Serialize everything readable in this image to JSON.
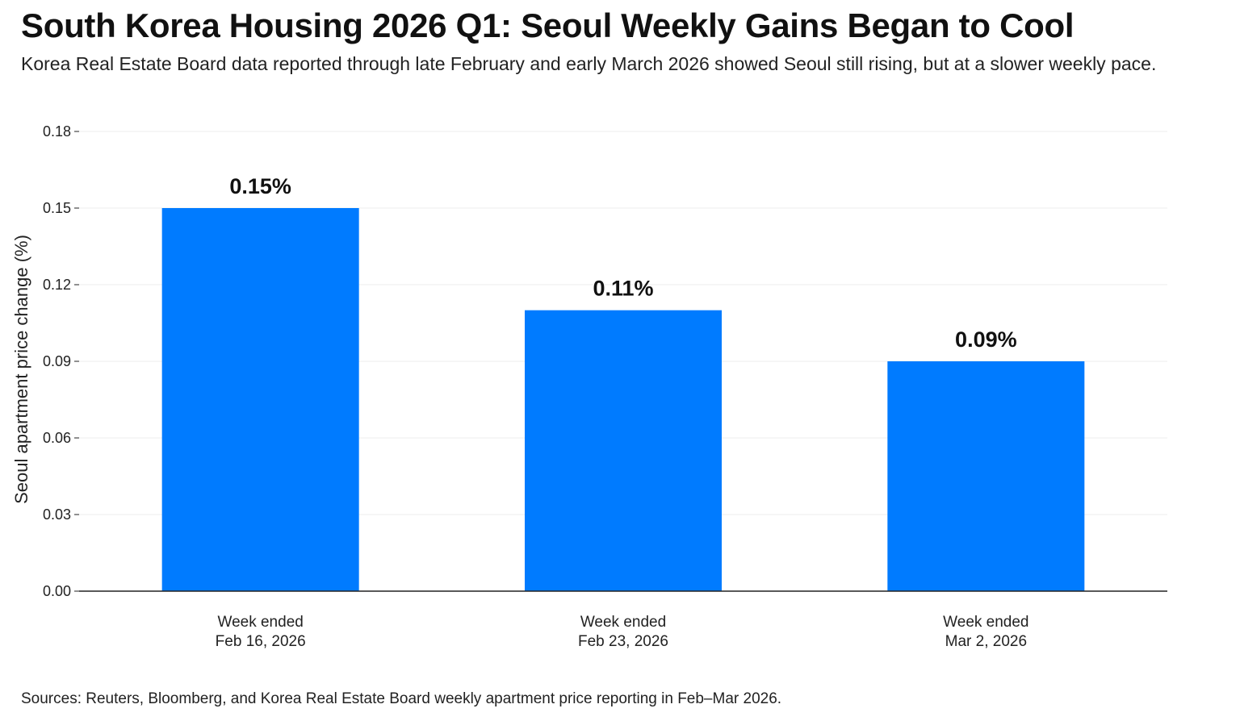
{
  "header": {
    "title": "South Korea Housing 2026 Q1: Seoul Weekly Gains Began to Cool",
    "subtitle": "Korea Real Estate Board data reported through late February and early March 2026 showed Seoul still rising, but at a slower weekly pace."
  },
  "footer": {
    "source": "Sources: Reuters, Bloomberg, and Korea Real Estate Board weekly apartment price reporting in Feb–Mar 2026."
  },
  "chart_data": {
    "type": "bar",
    "categories": [
      [
        "Week ended",
        "Feb 16, 2026"
      ],
      [
        "Week ended",
        "Feb 23, 2026"
      ],
      [
        "Week ended",
        "Mar 2, 2026"
      ]
    ],
    "values": [
      0.15,
      0.11,
      0.09
    ],
    "data_labels": [
      "0.15%",
      "0.11%",
      "0.09%"
    ],
    "ylabel": "Seoul apartment price change (%)",
    "ylim": [
      0,
      0.18
    ],
    "yticks": [
      "0.00",
      "0.03",
      "0.06",
      "0.09",
      "0.12",
      "0.15",
      "0.18"
    ],
    "grid": true,
    "legend": "none",
    "colors": {
      "bar": "#007BFF",
      "grid": "#EEEEEE",
      "axis": "#222222"
    }
  }
}
